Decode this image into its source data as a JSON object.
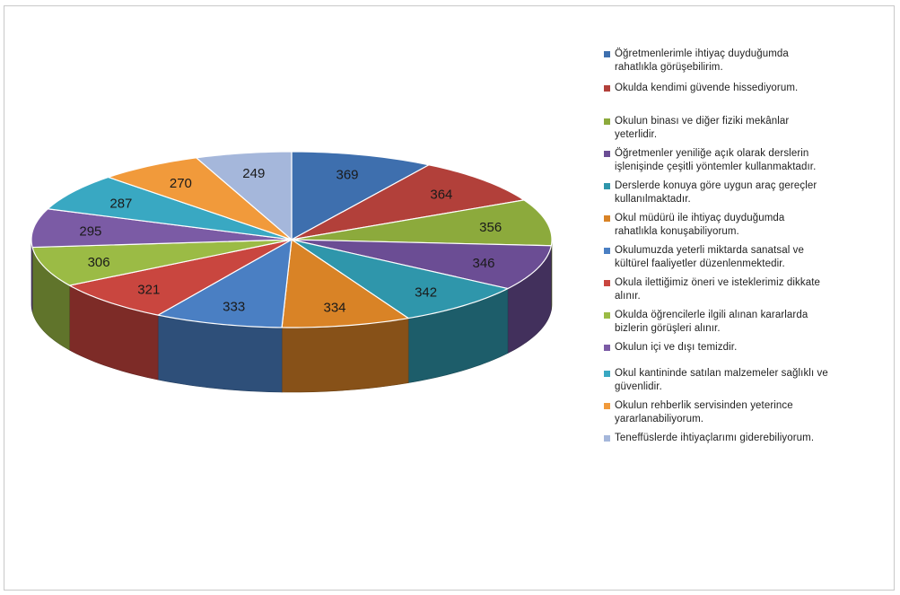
{
  "chart_data": {
    "type": "pie",
    "style": "3d-exploded-free",
    "slices": [
      {
        "label": "Öğretmenlerimle ihtiyaç duyduğumda\nrahatlıkla görüşebilirim.",
        "value": 369,
        "color": "#3e6fae"
      },
      {
        "label": "Okulda kendimi güvende hissediyorum.",
        "value": 364,
        "color": "#b2403a"
      },
      {
        "label": "Okulun binası ve diğer fiziki mekânlar\nyeterlidir.",
        "value": 356,
        "color": "#8caa3c"
      },
      {
        "label": "Öğretmenler yeniliğe açık olarak derslerin\nişlenişinde çeşitli yöntemler kullanmaktadır.",
        "value": 346,
        "color": "#6b4d94"
      },
      {
        "label": "Derslerde konuya göre uygun araç gereçler\nkullanılmaktadır.",
        "value": 342,
        "color": "#2f96ab"
      },
      {
        "label": "Okul müdürü ile ihtiyaç duyduğumda\nrahatlıkla konuşabiliyorum.",
        "value": 334,
        "color": "#d98326"
      },
      {
        "label": "Okulumuzda yeterli miktarda sanatsal ve\nkültürel faaliyetler düzenlenmektedir.",
        "value": 333,
        "color": "#4a7fc3"
      },
      {
        "label": "Okula ilettiğimiz öneri ve isteklerimiz dikkate\nalınır.",
        "value": 321,
        "color": "#c9463f"
      },
      {
        "label": "Okulda öğrencilerle ilgili alınan kararlarda\nbizlerin görüşleri alınır.",
        "value": 306,
        "color": "#9bbb45"
      },
      {
        "label": "Okulun içi ve dışı temizdir.",
        "value": 295,
        "color": "#7b5ba5"
      },
      {
        "label": "Okul kantininde satılan malzemeler sağlıklı ve\ngüvenlidir.",
        "value": 287,
        "color": "#39a8c2"
      },
      {
        "label": "Okulun rehberlik servisinden yeterince\nyararlanabiliyorum.",
        "value": 270,
        "color": "#f19a3b"
      },
      {
        "label": "Teneffüslerde ihtiyaçlarımı giderebiliyorum.",
        "value": 249,
        "color": "#a5b7db"
      }
    ],
    "legend_position": "right",
    "data_labels": true
  }
}
